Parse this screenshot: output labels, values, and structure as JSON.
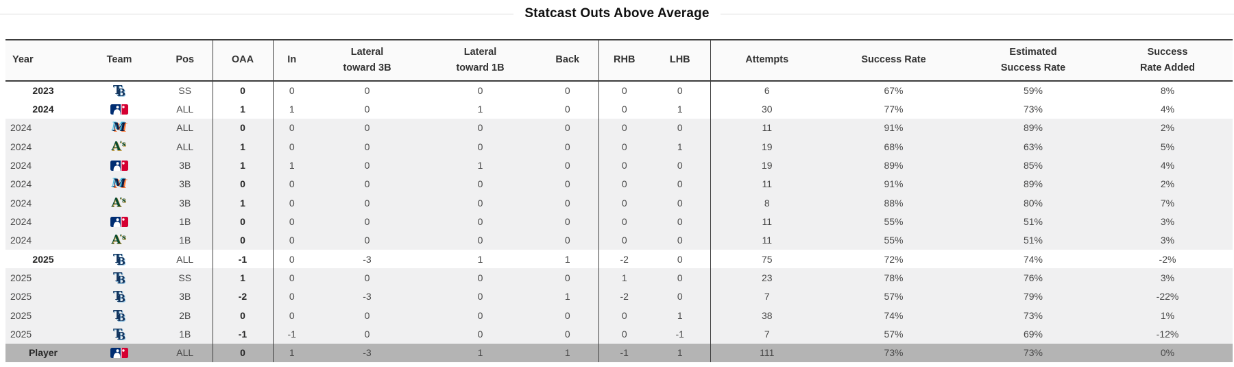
{
  "title": "Statcast Outs Above Average",
  "colors": {
    "stripe_bg": "#f0f0f1",
    "total_bg": "#b4b4b4",
    "header_bg": "#fafafa",
    "border_dark": "#3c3c3c",
    "title_rule": "#dcdcdc",
    "tb_navy": "#13355f",
    "tb_light_blue": "#8fc2e2",
    "mlb_navy": "#002d72",
    "mlb_red": "#d50032",
    "mia_navy": "#101d42",
    "mia_teal": "#3fb8e0",
    "mia_orange": "#ff7f3f",
    "ath_green": "#0a4a2f",
    "ath_gold": "#c9a24a"
  },
  "team_icons": {
    "TB": "rays-logo-icon",
    "MLB": "mlb-logo-icon",
    "MIA": "marlins-logo-icon",
    "ATH": "athletics-logo-icon"
  },
  "table": {
    "columns": [
      {
        "key": "year",
        "label": "Year"
      },
      {
        "key": "team",
        "label": "Team"
      },
      {
        "key": "pos",
        "label": "Pos"
      },
      {
        "key": "oaa",
        "label": "OAA"
      },
      {
        "key": "in",
        "label": "In"
      },
      {
        "key": "lat_3b",
        "label": "Lateral\ntoward 3B"
      },
      {
        "key": "lat_1b",
        "label": "Lateral\ntoward 1B"
      },
      {
        "key": "back",
        "label": "Back"
      },
      {
        "key": "rhb",
        "label": "RHB"
      },
      {
        "key": "lhb",
        "label": "LHB"
      },
      {
        "key": "attempts",
        "label": "Attempts"
      },
      {
        "key": "success_rate",
        "label": "Success Rate"
      },
      {
        "key": "est_success_rate",
        "label": "Estimated\nSuccess Rate"
      },
      {
        "key": "success_rate_added",
        "label": "Success\nRate Added"
      }
    ],
    "rows": [
      {
        "row_type": "season",
        "year": "2023",
        "team": "TB",
        "pos": "SS",
        "oaa": "0",
        "in": "0",
        "lat_3b": "0",
        "lat_1b": "0",
        "back": "0",
        "rhb": "0",
        "lhb": "0",
        "attempts": "6",
        "success_rate": "67%",
        "est_success_rate": "59%",
        "success_rate_added": "8%"
      },
      {
        "row_type": "season",
        "year": "2024",
        "team": "MLB",
        "pos": "ALL",
        "oaa": "1",
        "in": "1",
        "lat_3b": "0",
        "lat_1b": "1",
        "back": "0",
        "rhb": "0",
        "lhb": "1",
        "attempts": "30",
        "success_rate": "77%",
        "est_success_rate": "73%",
        "success_rate_added": "4%"
      },
      {
        "row_type": "detail",
        "year": "2024",
        "team": "MIA",
        "pos": "ALL",
        "oaa": "0",
        "in": "0",
        "lat_3b": "0",
        "lat_1b": "0",
        "back": "0",
        "rhb": "0",
        "lhb": "0",
        "attempts": "11",
        "success_rate": "91%",
        "est_success_rate": "89%",
        "success_rate_added": "2%"
      },
      {
        "row_type": "detail",
        "year": "2024",
        "team": "ATH",
        "pos": "ALL",
        "oaa": "1",
        "in": "0",
        "lat_3b": "0",
        "lat_1b": "0",
        "back": "0",
        "rhb": "0",
        "lhb": "1",
        "attempts": "19",
        "success_rate": "68%",
        "est_success_rate": "63%",
        "success_rate_added": "5%"
      },
      {
        "row_type": "detail",
        "year": "2024",
        "team": "MLB",
        "pos": "3B",
        "oaa": "1",
        "in": "1",
        "lat_3b": "0",
        "lat_1b": "1",
        "back": "0",
        "rhb": "0",
        "lhb": "0",
        "attempts": "19",
        "success_rate": "89%",
        "est_success_rate": "85%",
        "success_rate_added": "4%"
      },
      {
        "row_type": "detail",
        "year": "2024",
        "team": "MIA",
        "pos": "3B",
        "oaa": "0",
        "in": "0",
        "lat_3b": "0",
        "lat_1b": "0",
        "back": "0",
        "rhb": "0",
        "lhb": "0",
        "attempts": "11",
        "success_rate": "91%",
        "est_success_rate": "89%",
        "success_rate_added": "2%"
      },
      {
        "row_type": "detail",
        "year": "2024",
        "team": "ATH",
        "pos": "3B",
        "oaa": "1",
        "in": "0",
        "lat_3b": "0",
        "lat_1b": "0",
        "back": "0",
        "rhb": "0",
        "lhb": "0",
        "attempts": "8",
        "success_rate": "88%",
        "est_success_rate": "80%",
        "success_rate_added": "7%"
      },
      {
        "row_type": "detail",
        "year": "2024",
        "team": "MLB",
        "pos": "1B",
        "oaa": "0",
        "in": "0",
        "lat_3b": "0",
        "lat_1b": "0",
        "back": "0",
        "rhb": "0",
        "lhb": "0",
        "attempts": "11",
        "success_rate": "55%",
        "est_success_rate": "51%",
        "success_rate_added": "3%"
      },
      {
        "row_type": "detail",
        "year": "2024",
        "team": "ATH",
        "pos": "1B",
        "oaa": "0",
        "in": "0",
        "lat_3b": "0",
        "lat_1b": "0",
        "back": "0",
        "rhb": "0",
        "lhb": "0",
        "attempts": "11",
        "success_rate": "55%",
        "est_success_rate": "51%",
        "success_rate_added": "3%"
      },
      {
        "row_type": "season",
        "year": "2025",
        "team": "TB",
        "pos": "ALL",
        "oaa": "-1",
        "in": "0",
        "lat_3b": "-3",
        "lat_1b": "1",
        "back": "1",
        "rhb": "-2",
        "lhb": "0",
        "attempts": "75",
        "success_rate": "72%",
        "est_success_rate": "74%",
        "success_rate_added": "-2%"
      },
      {
        "row_type": "detail",
        "year": "2025",
        "team": "TB",
        "pos": "SS",
        "oaa": "1",
        "in": "0",
        "lat_3b": "0",
        "lat_1b": "0",
        "back": "0",
        "rhb": "1",
        "lhb": "0",
        "attempts": "23",
        "success_rate": "78%",
        "est_success_rate": "76%",
        "success_rate_added": "3%"
      },
      {
        "row_type": "detail",
        "year": "2025",
        "team": "TB",
        "pos": "3B",
        "oaa": "-2",
        "in": "0",
        "lat_3b": "-3",
        "lat_1b": "0",
        "back": "1",
        "rhb": "-2",
        "lhb": "0",
        "attempts": "7",
        "success_rate": "57%",
        "est_success_rate": "79%",
        "success_rate_added": "-22%"
      },
      {
        "row_type": "detail",
        "year": "2025",
        "team": "TB",
        "pos": "2B",
        "oaa": "0",
        "in": "0",
        "lat_3b": "0",
        "lat_1b": "0",
        "back": "0",
        "rhb": "0",
        "lhb": "1",
        "attempts": "38",
        "success_rate": "74%",
        "est_success_rate": "73%",
        "success_rate_added": "1%"
      },
      {
        "row_type": "detail",
        "year": "2025",
        "team": "TB",
        "pos": "1B",
        "oaa": "-1",
        "in": "-1",
        "lat_3b": "0",
        "lat_1b": "0",
        "back": "0",
        "rhb": "0",
        "lhb": "-1",
        "attempts": "7",
        "success_rate": "57%",
        "est_success_rate": "69%",
        "success_rate_added": "-12%"
      },
      {
        "row_type": "total",
        "year": "Player",
        "team": "MLB",
        "pos": "ALL",
        "oaa": "0",
        "in": "1",
        "lat_3b": "-3",
        "lat_1b": "1",
        "back": "1",
        "rhb": "-1",
        "lhb": "1",
        "attempts": "111",
        "success_rate": "73%",
        "est_success_rate": "73%",
        "success_rate_added": "0%"
      }
    ]
  }
}
